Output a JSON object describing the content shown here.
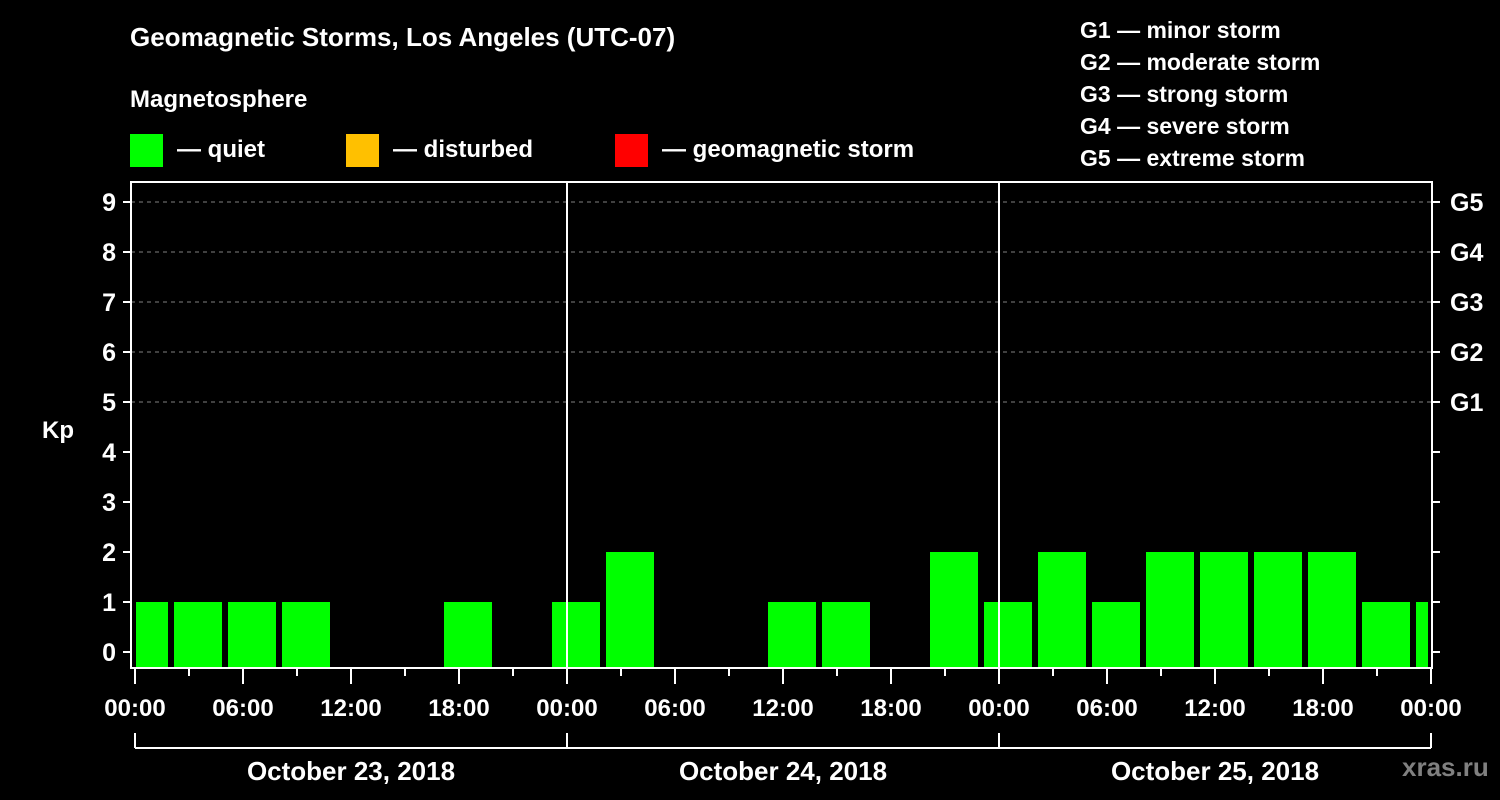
{
  "header": {
    "title": "Geomagnetic Storms, Los Angeles (UTC-07)",
    "subtitle": "Magnetosphere"
  },
  "legend": [
    {
      "label": "— quiet",
      "color": "#00ff00"
    },
    {
      "label": "— disturbed",
      "color": "#ffc000"
    },
    {
      "label": "— geomagnetic storm",
      "color": "#ff0000"
    }
  ],
  "storm_scale": [
    {
      "level": "G1",
      "label": "G1 — minor storm"
    },
    {
      "level": "G2",
      "label": "G2 — moderate storm"
    },
    {
      "level": "G3",
      "label": "G3 — strong storm"
    },
    {
      "level": "G4",
      "label": "G4 — severe storm"
    },
    {
      "level": "G5",
      "label": "G5 — extreme storm"
    }
  ],
  "watermark": "xras.ru",
  "chart_data": {
    "type": "bar",
    "title": "Geomagnetic Storms, Los Angeles (UTC-07)",
    "subtitle": "Magnetosphere",
    "xlabel": "",
    "ylabel": "Kp",
    "ylim": [
      0,
      9
    ],
    "yticks": [
      0,
      1,
      2,
      3,
      4,
      5,
      6,
      7,
      8,
      9
    ],
    "right_axis_labels": [
      {
        "kp": 5,
        "label": "G1"
      },
      {
        "kp": 6,
        "label": "G2"
      },
      {
        "kp": 7,
        "label": "G3"
      },
      {
        "kp": 8,
        "label": "G4"
      },
      {
        "kp": 9,
        "label": "G5"
      }
    ],
    "grid": {
      "horizontal_dashed_at": [
        5,
        6,
        7,
        8,
        9
      ]
    },
    "xtick_labels": [
      "00:00",
      "06:00",
      "12:00",
      "18:00",
      "00:00",
      "06:00",
      "12:00",
      "18:00",
      "00:00",
      "06:00",
      "12:00",
      "18:00",
      "00:00"
    ],
    "days": [
      "October 23, 2018",
      "October 24, 2018",
      "October 25, 2018"
    ],
    "bar_hours": 3,
    "first_boundary_hour": 2,
    "legend": [
      {
        "label": "quiet",
        "color": "#00ff00"
      },
      {
        "label": "disturbed",
        "color": "#ffc000"
      },
      {
        "label": "geomagnetic storm",
        "color": "#ff0000"
      }
    ],
    "series": [
      {
        "name": "Kp",
        "color": "#00ff00",
        "x": [
          "Oct 23 00:00-02:00",
          "Oct 23 02:00-05:00",
          "Oct 23 05:00-08:00",
          "Oct 23 08:00-11:00",
          "Oct 23 11:00-14:00",
          "Oct 23 14:00-17:00",
          "Oct 23 17:00-20:00",
          "Oct 23 20:00-23:00",
          "Oct 23 23:00-Oct 24 02:00",
          "Oct 24 02:00-05:00",
          "Oct 24 05:00-08:00",
          "Oct 24 08:00-11:00",
          "Oct 24 11:00-14:00",
          "Oct 24 14:00-17:00",
          "Oct 24 17:00-20:00",
          "Oct 24 20:00-23:00",
          "Oct 24 23:00-Oct 25 02:00",
          "Oct 25 02:00-05:00",
          "Oct 25 05:00-08:00",
          "Oct 25 08:00-11:00",
          "Oct 25 11:00-14:00",
          "Oct 25 14:00-17:00",
          "Oct 25 17:00-20:00",
          "Oct 25 20:00-23:00",
          "Oct 25 23:00-24:00"
        ],
        "values": [
          1,
          1,
          1,
          1,
          0,
          0,
          1,
          0,
          1,
          2,
          0,
          0,
          1,
          1,
          0,
          2,
          1,
          2,
          1,
          2,
          2,
          2,
          2,
          1,
          1
        ]
      }
    ]
  }
}
